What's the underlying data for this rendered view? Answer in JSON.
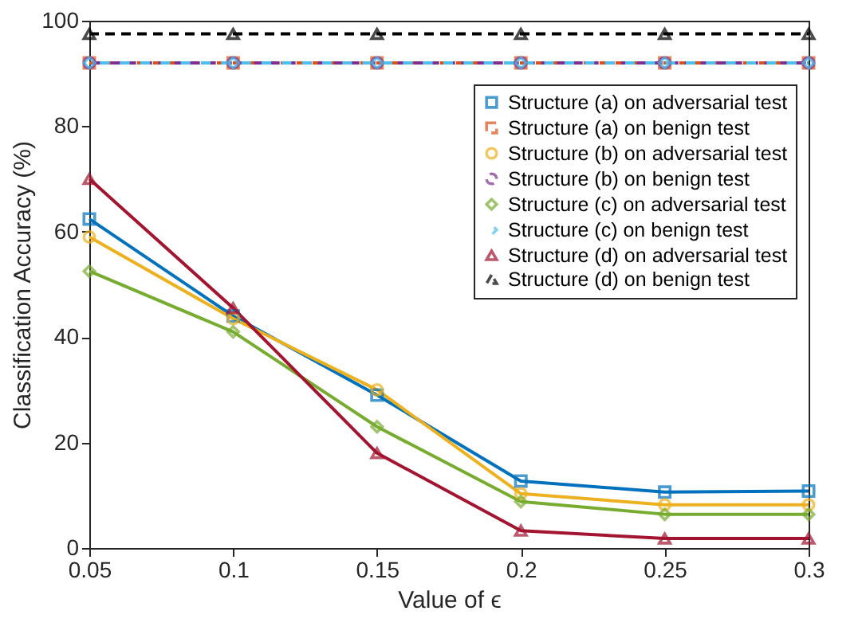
{
  "chart_data": {
    "type": "line",
    "xlabel": "Value of ϵ",
    "ylabel": "Classification Accuracy (%)",
    "x": [
      0.05,
      0.1,
      0.15,
      0.2,
      0.25,
      0.3
    ],
    "xlim": [
      0.05,
      0.3
    ],
    "xticks": [
      0.05,
      0.1,
      0.15,
      0.2,
      0.25,
      0.3
    ],
    "ylim": [
      0,
      100
    ],
    "yticks": [
      0,
      20,
      40,
      60,
      80,
      100
    ],
    "grid": false,
    "legend": "top right",
    "series": [
      {
        "name": "Structure (a) on adversarial test",
        "color": "#0072bd",
        "marker": "square",
        "line_style": "solid",
        "values": [
          62.4,
          44,
          29,
          12.7,
          10.6,
          10.8
        ]
      },
      {
        "name": "Structure (a) on benign test",
        "color": "#d95319",
        "marker": "square",
        "line_style": "dashed",
        "values": [
          92,
          92,
          92,
          92,
          92,
          92
        ]
      },
      {
        "name": "Structure (b) on adversarial test",
        "color": "#edb120",
        "marker": "circle",
        "line_style": "solid",
        "values": [
          59,
          43.5,
          30,
          10.3,
          8.2,
          8.2
        ]
      },
      {
        "name": "Structure (b) on benign test",
        "color": "#7e2f8e",
        "marker": "circle",
        "line_style": "dashed",
        "values": [
          92,
          92,
          92,
          92,
          92,
          92
        ]
      },
      {
        "name": "Structure (c) on adversarial test",
        "color": "#77ac30",
        "marker": "diamond",
        "line_style": "solid",
        "values": [
          52.5,
          41,
          23,
          8.8,
          6.4,
          6.4
        ]
      },
      {
        "name": "Structure (c) on benign test",
        "color": "#4dbeee",
        "marker": "diamond",
        "line_style": "dashed",
        "values": [
          92,
          92,
          92,
          92,
          92,
          92
        ]
      },
      {
        "name": "Structure (d) on adversarial test",
        "color": "#a2142f",
        "marker": "triangle",
        "line_style": "solid",
        "values": [
          70,
          45.5,
          18,
          3.3,
          1.8,
          1.8
        ]
      },
      {
        "name": "Structure (d) on benign test",
        "color": "#000000",
        "marker": "triangle",
        "line_style": "dashed",
        "values": [
          97.5,
          97.5,
          97.5,
          97.5,
          97.5,
          97.5
        ]
      }
    ]
  }
}
